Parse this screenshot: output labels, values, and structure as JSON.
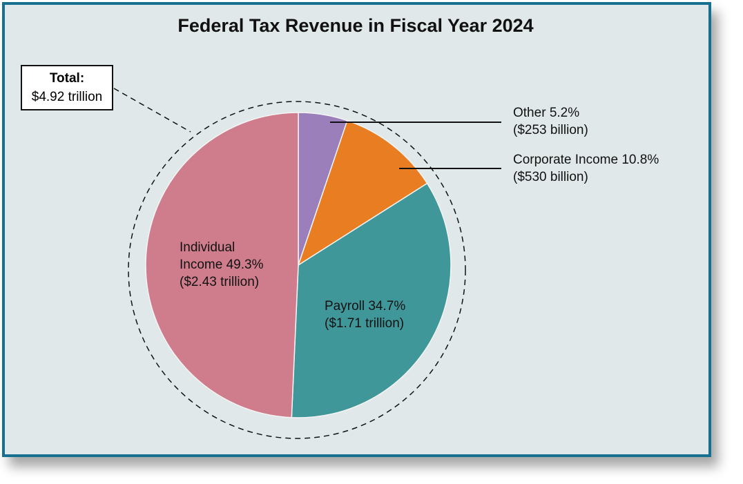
{
  "chart_data": {
    "type": "pie",
    "title": "Federal Tax Revenue in Fiscal Year 2024",
    "categories": [
      "Other",
      "Corporate Income",
      "Payroll",
      "Individual Income"
    ],
    "values": [
      5.2,
      10.8,
      34.7,
      49.3
    ],
    "value_labels": [
      "5.2%",
      "10.8%",
      "34.7%",
      "49.3%"
    ],
    "amount_labels": [
      "($253 billion)",
      "($530 billion)",
      "($1.71 trillion)",
      "($2.43 trillion)"
    ],
    "colors": [
      "#9b7fba",
      "#e87d22",
      "#40979a",
      "#cf7d8c"
    ],
    "total_title": "Total:",
    "total": "$4.92 trillion"
  }
}
